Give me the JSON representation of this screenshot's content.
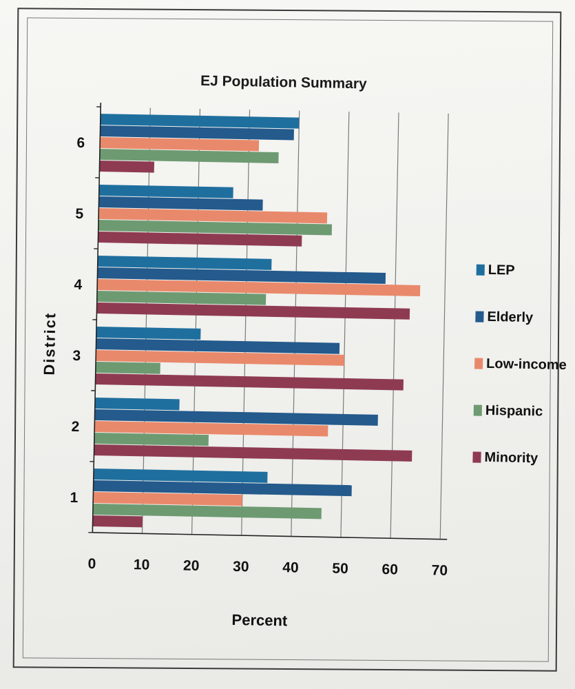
{
  "chart_data": {
    "type": "bar",
    "orientation": "horizontal",
    "title": "EJ Population Summary",
    "xlabel": "Percent",
    "ylabel": "District",
    "xlim": [
      0,
      70
    ],
    "x_ticks": [
      "0",
      "10",
      "20",
      "30",
      "40",
      "50",
      "60",
      "70"
    ],
    "categories": [
      "1",
      "2",
      "3",
      "4",
      "5",
      "6"
    ],
    "grid": "vertical",
    "legend_position": "right",
    "series": [
      {
        "name": "LEP",
        "color": "#1f6f9e",
        "values": [
          35,
          17,
          21,
          35,
          27,
          40
        ]
      },
      {
        "name": "Elderly",
        "color": "#245a8c",
        "values": [
          52,
          57,
          49,
          58,
          33,
          39
        ]
      },
      {
        "name": "Low-income",
        "color": "#e9896b",
        "values": [
          30,
          47,
          50,
          65,
          46,
          32
        ]
      },
      {
        "name": "Hispanic",
        "color": "#6e9a72",
        "values": [
          46,
          23,
          13,
          34,
          47,
          36
        ]
      },
      {
        "name": "Minority",
        "color": "#8e3b52",
        "values": [
          10,
          64,
          62,
          63,
          41,
          11
        ]
      }
    ]
  }
}
